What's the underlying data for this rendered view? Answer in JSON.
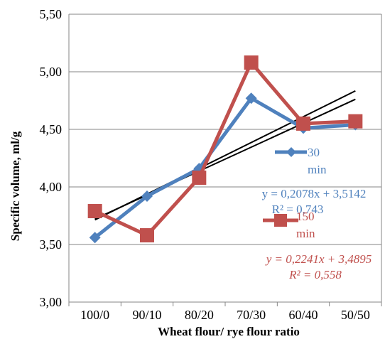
{
  "chart_data": {
    "type": "line",
    "title": "",
    "xlabel": "Wheat flour/ rye flour ratio",
    "ylabel": "Specific volume, ml/g",
    "categories": [
      "100/0",
      "90/10",
      "80/20",
      "70/30",
      "60/40",
      "50/50"
    ],
    "ylim": [
      3.0,
      5.5
    ],
    "yticks": [
      3.0,
      3.5,
      4.0,
      4.5,
      5.0,
      5.5
    ],
    "ytick_labels": [
      "3,00",
      "3,50",
      "4,00",
      "4,50",
      "5,00",
      "5,50"
    ],
    "grid": "horizontal",
    "series": [
      {
        "name": "30 min",
        "values": [
          3.56,
          3.92,
          4.16,
          4.77,
          4.51,
          4.54
        ],
        "color": "#4F81BD",
        "marker": "diamond",
        "trendline": {
          "slope": 0.2078,
          "intercept": 3.5142,
          "equation": "y = 0,2078x + 3,5142",
          "r2": "R² = 0,743"
        }
      },
      {
        "name": "150 min",
        "values": [
          3.79,
          3.58,
          4.08,
          5.08,
          4.55,
          4.57
        ],
        "color": "#C0504D",
        "marker": "square",
        "trendline": {
          "slope": 0.2241,
          "intercept": 3.4895,
          "equation": "y = 0,2241x + 3,4895",
          "r2": "R² = 0,558"
        }
      }
    ],
    "trendline_color": "#000000",
    "legend_position": "right"
  }
}
